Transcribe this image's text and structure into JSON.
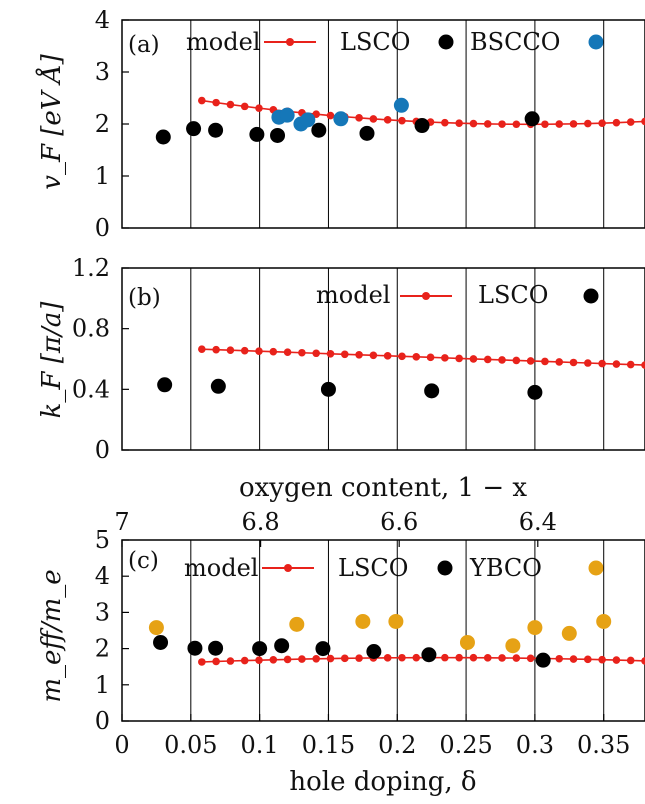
{
  "colors": {
    "model": "#e8221b",
    "lscо_placeholder": "",
    "LSCO": "#000000",
    "BSCCO": "#1577b8",
    "YBCO": "#e6a215"
  },
  "chart_data": [
    {
      "panel_label": "(a)",
      "type": "scatter",
      "ylabel": "v_F [eV Å]",
      "xlim": [
        0,
        0.38
      ],
      "ylim": [
        0,
        4
      ],
      "yticks": [
        "0",
        "1",
        "2",
        "3",
        "4"
      ],
      "grid_x": [
        0.05,
        0.1,
        0.15,
        0.2,
        0.25,
        0.3,
        0.35
      ],
      "legend": [
        "model",
        "LSCO",
        "BSCCO"
      ],
      "series": [
        {
          "name": "model",
          "kind": "line",
          "x_start": 0.058,
          "x_end": 0.38,
          "y_start": 2.45,
          "y_mid_x": 0.27,
          "y_mid": 2.0,
          "y_end": 2.05
        },
        {
          "name": "LSCO",
          "kind": "scatter",
          "x": [
            0.03,
            0.052,
            0.068,
            0.098,
            0.113,
            0.143,
            0.178,
            0.218,
            0.298
          ],
          "y": [
            1.75,
            1.91,
            1.88,
            1.8,
            1.78,
            1.88,
            1.82,
            1.97,
            2.1
          ]
        },
        {
          "name": "BSCCO",
          "kind": "scatter",
          "x": [
            0.114,
            0.12,
            0.13,
            0.135,
            0.159,
            0.203
          ],
          "y": [
            2.13,
            2.17,
            2.0,
            2.08,
            2.1,
            2.36
          ]
        }
      ]
    },
    {
      "panel_label": "(b)",
      "type": "scatter",
      "ylabel": "k_F [π/a]",
      "xlim": [
        0,
        0.38
      ],
      "ylim": [
        0,
        1.2
      ],
      "yticks": [
        "0",
        "0.4",
        "0.8",
        "1.2"
      ],
      "grid_x": [
        0.05,
        0.1,
        0.15,
        0.2,
        0.25,
        0.3,
        0.35
      ],
      "legend": [
        "model",
        "LSCO"
      ],
      "series": [
        {
          "name": "model",
          "kind": "line",
          "x_start": 0.058,
          "x_end": 0.38,
          "y_start": 0.665,
          "y_end": 0.56
        },
        {
          "name": "LSCO",
          "kind": "scatter",
          "x": [
            0.031,
            0.07,
            0.15,
            0.225,
            0.3
          ],
          "y": [
            0.43,
            0.42,
            0.4,
            0.39,
            0.38
          ]
        }
      ]
    },
    {
      "panel_label": "(c)",
      "type": "scatter",
      "ylabel": "m_eff/m_e",
      "xlabel": "hole doping, δ",
      "top_xlabel": "oxygen content, 1 − x",
      "xlim": [
        0,
        0.38
      ],
      "ylim": [
        0,
        5
      ],
      "yticks": [
        "0",
        "1",
        "2",
        "3",
        "4",
        "5"
      ],
      "xticks": [
        "0",
        "0.05",
        "0.1",
        "0.15",
        "0.2",
        "0.25",
        "0.3",
        "0.35"
      ],
      "top_ticks": [
        {
          "label": "7",
          "x": 0.0
        },
        {
          "label": "6.8",
          "x": 0.1007
        },
        {
          "label": "6.6",
          "x": 0.2014
        },
        {
          "label": "6.4",
          "x": 0.3021
        }
      ],
      "grid_x": [
        0.05,
        0.1,
        0.15,
        0.2,
        0.25,
        0.3,
        0.35
      ],
      "legend": [
        "model",
        "LSCO",
        "YBCO"
      ],
      "series": [
        {
          "name": "model",
          "kind": "line",
          "x_start": 0.058,
          "x_end": 0.38,
          "y_start": 1.63,
          "y_mid_x": 0.22,
          "y_mid": 1.75,
          "y_end": 1.66
        },
        {
          "name": "LSCO",
          "kind": "scatter",
          "x": [
            0.028,
            0.053,
            0.068,
            0.1,
            0.116,
            0.146,
            0.183,
            0.223,
            0.306
          ],
          "y": [
            2.17,
            2.01,
            2.01,
            2.0,
            2.08,
            2.0,
            1.92,
            1.83,
            1.68
          ]
        },
        {
          "name": "YBCO",
          "kind": "scatter",
          "x": [
            0.025,
            0.127,
            0.175,
            0.199,
            0.251,
            0.284,
            0.3,
            0.325,
            0.35
          ],
          "y": [
            2.58,
            2.67,
            2.75,
            2.75,
            2.17,
            2.08,
            2.58,
            2.42,
            2.75
          ]
        }
      ]
    }
  ]
}
